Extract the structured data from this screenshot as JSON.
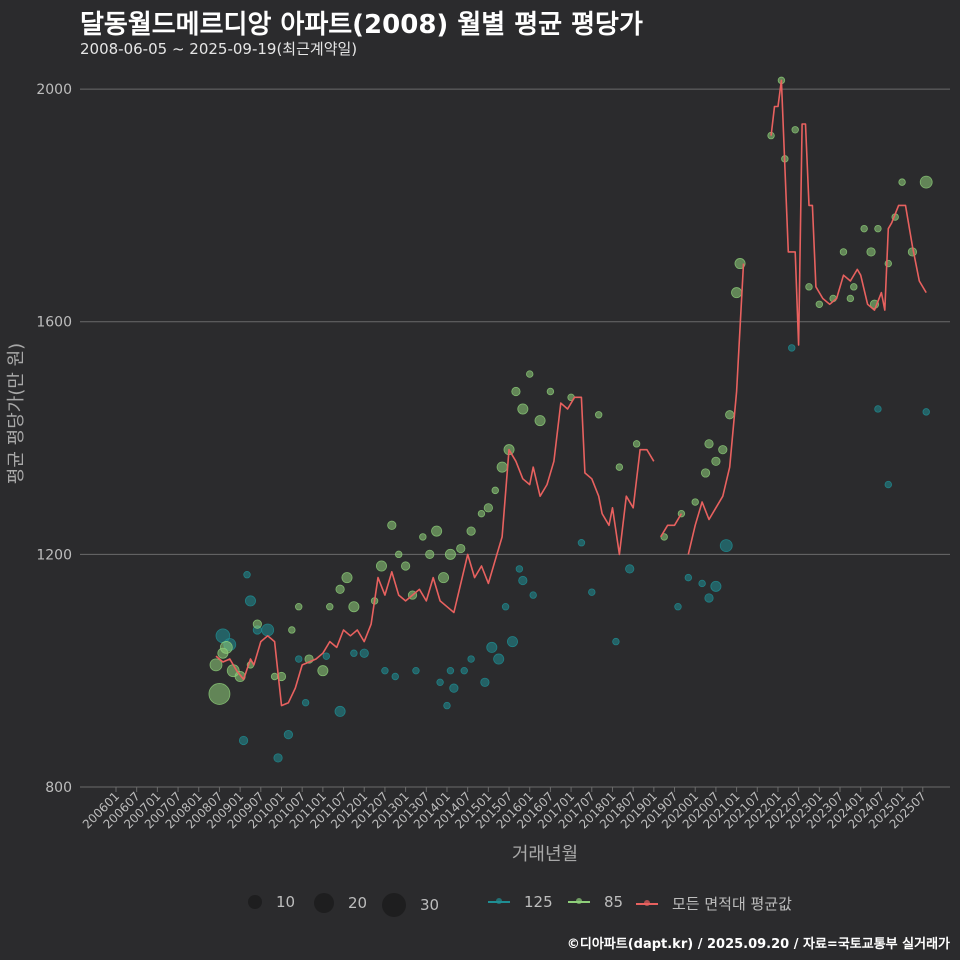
{
  "title": "달동월드메르디앙 아파트(2008) 월별 평균 평당가",
  "subtitle": "2008-06-05 ~ 2025-09-19(최근계약일)",
  "source": "©디아파트(dapt.kr) / 2025.09.20 / 자료=국토교통부 실거래가",
  "colors": {
    "background": "#2b2b2d",
    "area125": "#1f8e93",
    "area85": "#8fcf7a",
    "avg": "#e8615f",
    "grid": "#6b6b6b",
    "text": "#bdbdbd"
  },
  "legend": {
    "size_title": "",
    "sizes": [
      {
        "label": "10",
        "value": 10
      },
      {
        "label": "20",
        "value": 20
      },
      {
        "label": "30",
        "value": 30
      }
    ],
    "series": [
      {
        "label": "125",
        "color": "#1f8e93"
      },
      {
        "label": "85",
        "color": "#8fcf7a"
      },
      {
        "label": "모든 면적대 평균값",
        "color": "#e8615f"
      }
    ]
  },
  "chart_data": {
    "type": "scatter",
    "xlabel": "거래년월",
    "ylabel": "평균 평당가(만 원)",
    "ylim": [
      800,
      2050
    ],
    "yticks": [
      800,
      1200,
      1600,
      2000
    ],
    "xlim": [
      "2006-01",
      "2025-12"
    ],
    "xticks": [
      "200601",
      "200607",
      "200701",
      "200707",
      "200801",
      "200807",
      "200901",
      "200907",
      "201001",
      "201007",
      "201101",
      "201107",
      "201201",
      "201207",
      "201301",
      "201307",
      "201401",
      "201407",
      "201501",
      "201507",
      "201601",
      "201607",
      "201701",
      "201707",
      "201801",
      "201807",
      "201901",
      "201907",
      "202001",
      "202007",
      "202101",
      "202107",
      "202201",
      "202207",
      "202301",
      "202307",
      "202401",
      "202407",
      "202501",
      "202507"
    ],
    "series": [
      {
        "name": "125",
        "color": "#1f8e93",
        "points": [
          [
            "2008-08",
            1060,
            6
          ],
          [
            "2008-10",
            1045,
            5
          ],
          [
            "2009-02",
            880,
            3
          ],
          [
            "2009-03",
            1165,
            2
          ],
          [
            "2009-04",
            1120,
            4
          ],
          [
            "2009-06",
            1070,
            3
          ],
          [
            "2009-09",
            1070,
            5
          ],
          [
            "2009-12",
            850,
            3
          ],
          [
            "2010-03",
            890,
            3
          ],
          [
            "2010-06",
            1020,
            2
          ],
          [
            "2010-08",
            945,
            2
          ],
          [
            "2011-02",
            1025,
            2
          ],
          [
            "2011-06",
            930,
            4
          ],
          [
            "2011-10",
            1030,
            2
          ],
          [
            "2012-01",
            1030,
            3
          ],
          [
            "2012-07",
            1000,
            2
          ],
          [
            "2012-10",
            990,
            2
          ],
          [
            "2013-04",
            1000,
            2
          ],
          [
            "2013-11",
            980,
            2
          ],
          [
            "2014-01",
            940,
            2
          ],
          [
            "2014-02",
            1000,
            2
          ],
          [
            "2014-03",
            970,
            3
          ],
          [
            "2014-06",
            1000,
            2
          ],
          [
            "2014-08",
            1020,
            2
          ],
          [
            "2014-12",
            980,
            3
          ],
          [
            "2015-02",
            1040,
            4
          ],
          [
            "2015-04",
            1020,
            4
          ],
          [
            "2015-06",
            1110,
            2
          ],
          [
            "2015-08",
            1050,
            4
          ],
          [
            "2015-10",
            1175,
            2
          ],
          [
            "2015-11",
            1155,
            3
          ],
          [
            "2016-02",
            1130,
            2
          ],
          [
            "2017-04",
            1220,
            2
          ],
          [
            "2017-07",
            1135,
            2
          ],
          [
            "2018-02",
            1050,
            2
          ],
          [
            "2018-06",
            1175,
            3
          ],
          [
            "2019-08",
            1110,
            2
          ],
          [
            "2019-11",
            1160,
            2
          ],
          [
            "2020-03",
            1150,
            2
          ],
          [
            "2020-05",
            1125,
            3
          ],
          [
            "2020-07",
            1145,
            4
          ],
          [
            "2020-10",
            1215,
            5
          ],
          [
            "2022-05",
            1555,
            2
          ],
          [
            "2024-06",
            1450,
            2
          ],
          [
            "2024-09",
            1320,
            2
          ],
          [
            "2025-08",
            1445,
            2
          ]
        ]
      },
      {
        "name": "85",
        "color": "#8fcf7a",
        "points": [
          [
            "2008-06",
            1010,
            5
          ],
          [
            "2008-07",
            960,
            10
          ],
          [
            "2008-08",
            1030,
            4
          ],
          [
            "2008-09",
            1040,
            5
          ],
          [
            "2008-11",
            1000,
            5
          ],
          [
            "2009-01",
            990,
            4
          ],
          [
            "2009-04",
            1010,
            2
          ],
          [
            "2009-06",
            1080,
            3
          ],
          [
            "2009-11",
            990,
            2
          ],
          [
            "2010-01",
            990,
            3
          ],
          [
            "2010-04",
            1070,
            2
          ],
          [
            "2010-06",
            1110,
            2
          ],
          [
            "2010-09",
            1020,
            3
          ],
          [
            "2011-01",
            1000,
            4
          ],
          [
            "2011-03",
            1110,
            2
          ],
          [
            "2011-06",
            1140,
            3
          ],
          [
            "2011-08",
            1160,
            4
          ],
          [
            "2011-10",
            1110,
            4
          ],
          [
            "2012-04",
            1120,
            2
          ],
          [
            "2012-06",
            1180,
            4
          ],
          [
            "2012-09",
            1250,
            3
          ],
          [
            "2012-11",
            1200,
            2
          ],
          [
            "2013-01",
            1180,
            3
          ],
          [
            "2013-03",
            1130,
            3
          ],
          [
            "2013-06",
            1230,
            2
          ],
          [
            "2013-08",
            1200,
            3
          ],
          [
            "2013-10",
            1240,
            4
          ],
          [
            "2013-12",
            1160,
            4
          ],
          [
            "2014-02",
            1200,
            4
          ],
          [
            "2014-05",
            1210,
            3
          ],
          [
            "2014-08",
            1240,
            3
          ],
          [
            "2014-11",
            1270,
            2
          ],
          [
            "2015-01",
            1280,
            3
          ],
          [
            "2015-03",
            1310,
            2
          ],
          [
            "2015-05",
            1350,
            4
          ],
          [
            "2015-07",
            1380,
            4
          ],
          [
            "2015-09",
            1480,
            3
          ],
          [
            "2015-11",
            1450,
            4
          ],
          [
            "2016-01",
            1510,
            2
          ],
          [
            "2016-04",
            1430,
            4
          ],
          [
            "2016-07",
            1480,
            2
          ],
          [
            "2017-01",
            1470,
            2
          ],
          [
            "2017-09",
            1440,
            2
          ],
          [
            "2018-03",
            1350,
            2
          ],
          [
            "2018-08",
            1390,
            2
          ],
          [
            "2019-04",
            1230,
            2
          ],
          [
            "2019-09",
            1270,
            2
          ],
          [
            "2020-01",
            1290,
            2
          ],
          [
            "2020-04",
            1340,
            3
          ],
          [
            "2020-05",
            1390,
            3
          ],
          [
            "2020-07",
            1360,
            3
          ],
          [
            "2020-09",
            1380,
            3
          ],
          [
            "2020-11",
            1440,
            3
          ],
          [
            "2021-01",
            1650,
            4
          ],
          [
            "2021-02",
            1700,
            4
          ],
          [
            "2021-11",
            1920,
            2
          ],
          [
            "2022-02",
            2015,
            2
          ],
          [
            "2022-03",
            1880,
            2
          ],
          [
            "2022-06",
            1930,
            2
          ],
          [
            "2022-10",
            1660,
            2
          ],
          [
            "2023-01",
            1630,
            2
          ],
          [
            "2023-05",
            1640,
            2
          ],
          [
            "2023-08",
            1720,
            2
          ],
          [
            "2023-10",
            1640,
            2
          ],
          [
            "2023-11",
            1660,
            2
          ],
          [
            "2024-02",
            1760,
            2
          ],
          [
            "2024-04",
            1720,
            3
          ],
          [
            "2024-05",
            1630,
            3
          ],
          [
            "2024-06",
            1760,
            2
          ],
          [
            "2024-09",
            1700,
            2
          ],
          [
            "2024-11",
            1780,
            2
          ],
          [
            "2025-01",
            1840,
            2
          ],
          [
            "2025-04",
            1720,
            3
          ],
          [
            "2025-08",
            1840,
            5
          ]
        ]
      }
    ],
    "avg_line": {
      "name": "모든 면적대 평균값",
      "color": "#e8615f",
      "segments": [
        [
          [
            "2008-06",
            1025
          ],
          [
            "2008-08",
            1015
          ],
          [
            "2008-10",
            1020
          ],
          [
            "2008-12",
            1000
          ],
          [
            "2009-02",
            985
          ],
          [
            "2009-04",
            1020
          ],
          [
            "2009-05",
            1010
          ],
          [
            "2009-07",
            1050
          ],
          [
            "2009-09",
            1060
          ],
          [
            "2009-11",
            1050
          ],
          [
            "2010-01",
            940
          ],
          [
            "2010-03",
            945
          ],
          [
            "2010-05",
            970
          ],
          [
            "2010-07",
            1010
          ],
          [
            "2010-09",
            1015
          ],
          [
            "2010-11",
            1020
          ],
          [
            "2011-01",
            1030
          ],
          [
            "2011-03",
            1050
          ],
          [
            "2011-05",
            1040
          ],
          [
            "2011-07",
            1070
          ],
          [
            "2011-09",
            1060
          ],
          [
            "2011-11",
            1070
          ],
          [
            "2012-01",
            1050
          ],
          [
            "2012-03",
            1080
          ],
          [
            "2012-05",
            1160
          ],
          [
            "2012-07",
            1130
          ],
          [
            "2012-09",
            1170
          ],
          [
            "2012-11",
            1130
          ],
          [
            "2013-01",
            1120
          ],
          [
            "2013-03",
            1130
          ],
          [
            "2013-05",
            1140
          ],
          [
            "2013-07",
            1120
          ],
          [
            "2013-09",
            1160
          ],
          [
            "2013-11",
            1120
          ],
          [
            "2014-01",
            1110
          ],
          [
            "2014-03",
            1100
          ],
          [
            "2014-05",
            1150
          ],
          [
            "2014-07",
            1200
          ],
          [
            "2014-09",
            1160
          ],
          [
            "2014-11",
            1180
          ],
          [
            "2015-01",
            1150
          ],
          [
            "2015-03",
            1190
          ],
          [
            "2015-05",
            1230
          ],
          [
            "2015-07",
            1380
          ],
          [
            "2015-09",
            1360
          ],
          [
            "2015-11",
            1330
          ],
          [
            "2016-01",
            1320
          ],
          [
            "2016-02",
            1350
          ],
          [
            "2016-04",
            1300
          ],
          [
            "2016-06",
            1320
          ],
          [
            "2016-08",
            1360
          ],
          [
            "2016-10",
            1460
          ],
          [
            "2016-12",
            1450
          ],
          [
            "2017-02",
            1470
          ],
          [
            "2017-04",
            1470
          ],
          [
            "2017-05",
            1340
          ],
          [
            "2017-07",
            1330
          ],
          [
            "2017-09",
            1300
          ],
          [
            "2017-10",
            1270
          ],
          [
            "2017-12",
            1250
          ],
          [
            "2018-01",
            1280
          ],
          [
            "2018-03",
            1200
          ],
          [
            "2018-05",
            1300
          ],
          [
            "2018-07",
            1280
          ],
          [
            "2018-09",
            1380
          ],
          [
            "2018-11",
            1380
          ],
          [
            "2019-01",
            1360
          ]
        ],
        [
          [
            "2019-03",
            1230
          ],
          [
            "2019-05",
            1250
          ],
          [
            "2019-07",
            1250
          ],
          [
            "2019-09",
            1270
          ]
        ],
        [
          [
            "2019-11",
            1200
          ],
          [
            "2020-01",
            1250
          ],
          [
            "2020-03",
            1290
          ],
          [
            "2020-05",
            1260
          ],
          [
            "2020-07",
            1280
          ],
          [
            "2020-09",
            1300
          ],
          [
            "2020-11",
            1350
          ],
          [
            "2021-01",
            1480
          ],
          [
            "2021-03",
            1700
          ]
        ],
        [
          [
            "2021-11",
            1920
          ],
          [
            "2021-12",
            1970
          ],
          [
            "2022-01",
            1970
          ],
          [
            "2022-02",
            2015
          ],
          [
            "2022-04",
            1720
          ],
          [
            "2022-06",
            1720
          ],
          [
            "2022-07",
            1560
          ],
          [
            "2022-08",
            1940
          ],
          [
            "2022-09",
            1940
          ],
          [
            "2022-10",
            1800
          ],
          [
            "2022-11",
            1800
          ],
          [
            "2022-12",
            1660
          ],
          [
            "2023-02",
            1640
          ],
          [
            "2023-04",
            1630
          ],
          [
            "2023-06",
            1640
          ],
          [
            "2023-08",
            1680
          ],
          [
            "2023-10",
            1670
          ],
          [
            "2023-12",
            1690
          ],
          [
            "2024-01",
            1680
          ],
          [
            "2024-03",
            1630
          ],
          [
            "2024-05",
            1620
          ],
          [
            "2024-07",
            1650
          ],
          [
            "2024-08",
            1620
          ],
          [
            "2024-09",
            1760
          ],
          [
            "2024-10",
            1770
          ],
          [
            "2024-12",
            1800
          ],
          [
            "2025-02",
            1800
          ],
          [
            "2025-04",
            1730
          ],
          [
            "2025-06",
            1670
          ],
          [
            "2025-08",
            1650
          ]
        ]
      ]
    }
  }
}
